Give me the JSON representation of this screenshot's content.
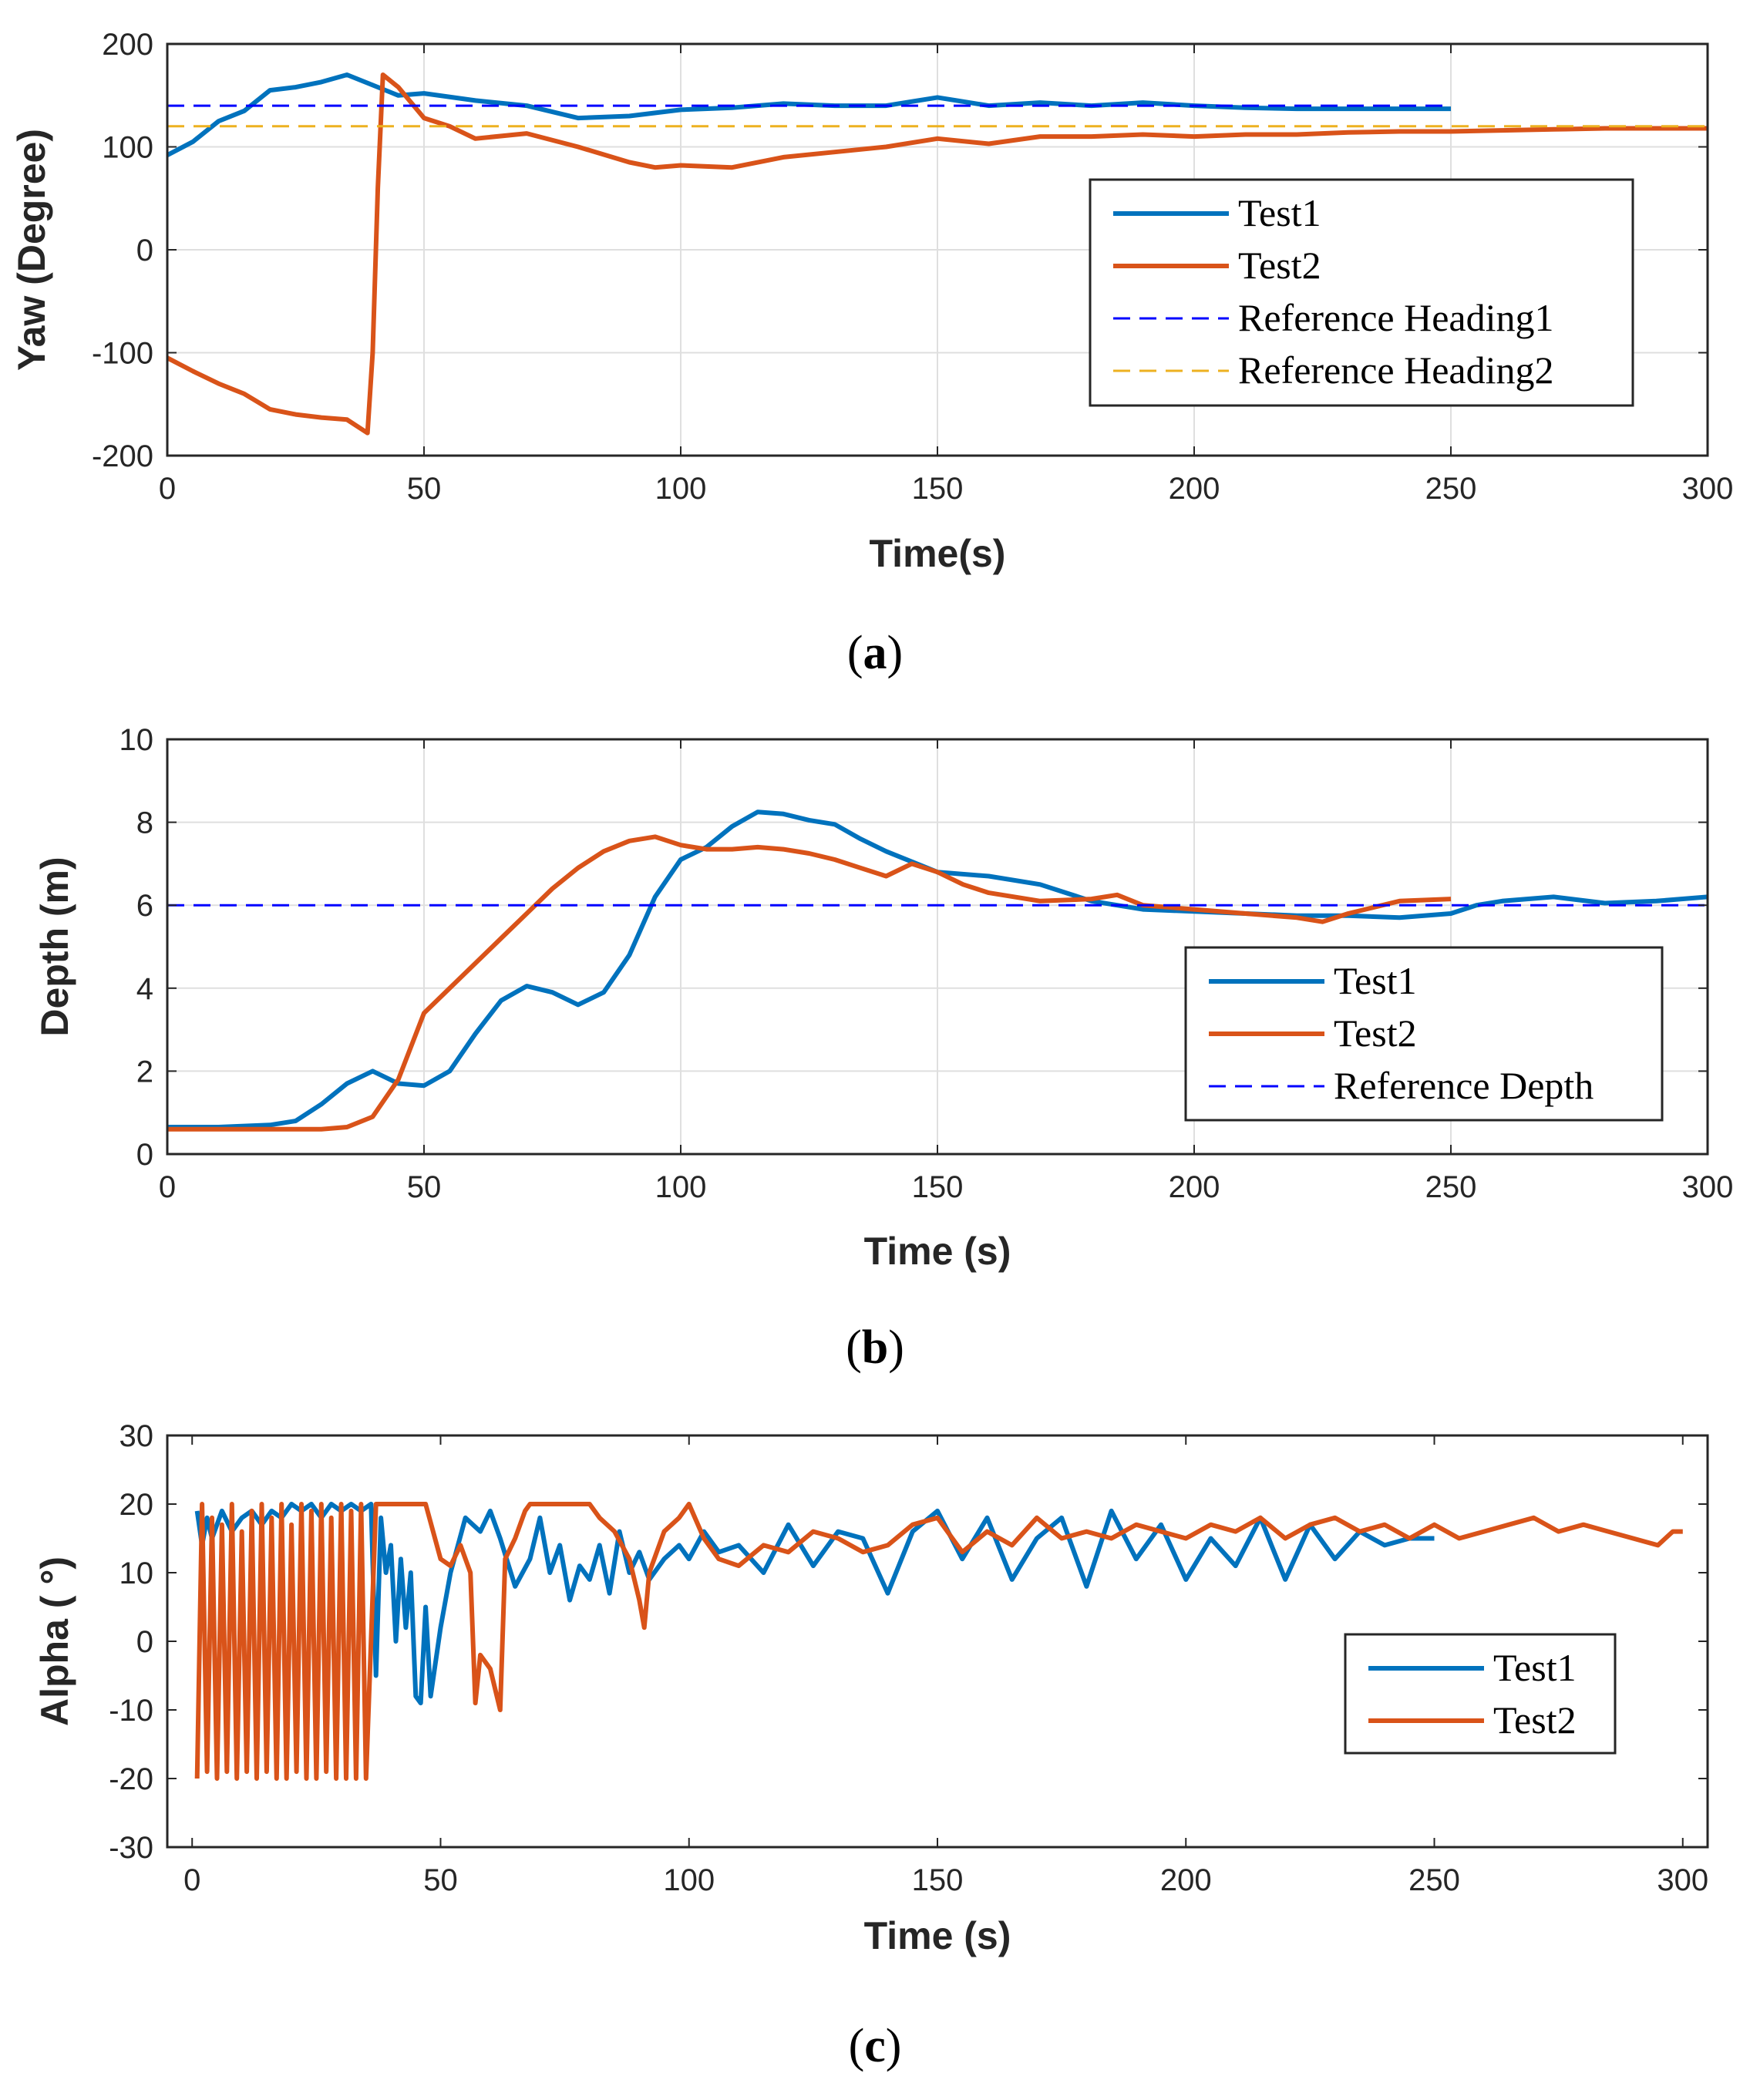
{
  "colors": {
    "test1": "#0072BD",
    "test2": "#D95319",
    "reference_blue": "#0000FF",
    "reference_orange": "#EDB120",
    "grid": "#DFDFDF",
    "axis": "#262626"
  },
  "chart_data": [
    {
      "type": "line",
      "caption_letter": "a",
      "xlabel": "Time(s)",
      "ylabel": "Yaw (Degree)",
      "xlim": [
        0,
        300
      ],
      "ylim": [
        -200,
        200
      ],
      "xticks": [
        0,
        50,
        100,
        150,
        200,
        250,
        300
      ],
      "yticks": [
        200,
        100,
        0,
        -100,
        -200
      ],
      "grid": true,
      "legend_position": "right",
      "series": [
        {
          "name": "Test1",
          "color_key": "test1",
          "style": "solid",
          "x": [
            0,
            5,
            10,
            15,
            20,
            25,
            30,
            35,
            40,
            45,
            50,
            60,
            70,
            80,
            90,
            100,
            110,
            120,
            130,
            140,
            150,
            160,
            170,
            180,
            190,
            200,
            210,
            220,
            230,
            240,
            250
          ],
          "y": [
            92,
            105,
            125,
            135,
            155,
            158,
            163,
            170,
            160,
            150,
            152,
            145,
            140,
            128,
            130,
            136,
            138,
            142,
            140,
            140,
            148,
            140,
            143,
            140,
            143,
            140,
            138,
            137,
            137,
            137,
            137
          ]
        },
        {
          "name": "Test2",
          "color_key": "test2",
          "style": "solid",
          "x": [
            0,
            5,
            10,
            15,
            20,
            25,
            30,
            35,
            39,
            40,
            41,
            42,
            45,
            50,
            55,
            60,
            70,
            80,
            90,
            95,
            100,
            110,
            120,
            130,
            140,
            150,
            160,
            170,
            180,
            190,
            200,
            210,
            220,
            230,
            240,
            250,
            260,
            270,
            280,
            290,
            300
          ],
          "y": [
            -105,
            -118,
            -130,
            -140,
            -155,
            -160,
            -163,
            -165,
            -178,
            -100,
            60,
            170,
            158,
            128,
            120,
            108,
            113,
            100,
            85,
            80,
            82,
            80,
            90,
            95,
            100,
            108,
            103,
            110,
            110,
            112,
            110,
            112,
            112,
            114,
            115,
            115,
            116,
            117,
            118,
            118,
            118
          ]
        },
        {
          "name": "Reference Heading1",
          "color_key": "reference_blue",
          "style": "dashed",
          "x": [
            0,
            250
          ],
          "y": [
            140,
            140
          ]
        },
        {
          "name": "Reference Heading2",
          "color_key": "reference_orange",
          "style": "dashed",
          "x": [
            0,
            300
          ],
          "y": [
            120,
            120
          ]
        }
      ]
    },
    {
      "type": "line",
      "caption_letter": "b",
      "xlabel": "Time (s)",
      "ylabel": "Depth (m)",
      "xlim": [
        0,
        300
      ],
      "ylim": [
        0,
        10
      ],
      "xticks": [
        0,
        50,
        100,
        150,
        200,
        250,
        300
      ],
      "yticks": [
        10,
        8,
        6,
        4,
        2,
        0
      ],
      "grid": true,
      "legend_position": "right",
      "series": [
        {
          "name": "Test1",
          "color_key": "test1",
          "style": "solid",
          "x": [
            0,
            10,
            20,
            25,
            30,
            35,
            40,
            45,
            50,
            55,
            60,
            65,
            70,
            75,
            80,
            85,
            90,
            95,
            100,
            105,
            110,
            115,
            120,
            125,
            130,
            135,
            140,
            150,
            160,
            170,
            180,
            190,
            200,
            210,
            220,
            230,
            240,
            250,
            255,
            260,
            270,
            280,
            290,
            300
          ],
          "y": [
            0.65,
            0.65,
            0.7,
            0.8,
            1.2,
            1.7,
            2.0,
            1.7,
            1.65,
            2.0,
            2.9,
            3.7,
            4.05,
            3.9,
            3.6,
            3.9,
            4.8,
            6.2,
            7.1,
            7.4,
            7.9,
            8.25,
            8.2,
            8.05,
            7.95,
            7.6,
            7.3,
            6.8,
            6.7,
            6.5,
            6.1,
            5.9,
            5.85,
            5.8,
            5.75,
            5.75,
            5.7,
            5.8,
            6.0,
            6.1,
            6.2,
            6.05,
            6.1,
            6.2
          ]
        },
        {
          "name": "Test2",
          "color_key": "test2",
          "style": "solid",
          "x": [
            0,
            10,
            20,
            30,
            35,
            40,
            45,
            50,
            55,
            60,
            65,
            70,
            75,
            80,
            85,
            90,
            95,
            100,
            105,
            110,
            115,
            120,
            125,
            130,
            135,
            140,
            145,
            150,
            155,
            160,
            170,
            180,
            185,
            190,
            200,
            210,
            220,
            225,
            230,
            240,
            250
          ],
          "y": [
            0.6,
            0.6,
            0.6,
            0.6,
            0.65,
            0.9,
            1.8,
            3.4,
            4.0,
            4.6,
            5.2,
            5.8,
            6.4,
            6.9,
            7.3,
            7.55,
            7.65,
            7.45,
            7.35,
            7.35,
            7.4,
            7.35,
            7.25,
            7.1,
            6.9,
            6.7,
            7.0,
            6.8,
            6.5,
            6.3,
            6.1,
            6.15,
            6.25,
            6.0,
            5.9,
            5.8,
            5.7,
            5.6,
            5.8,
            6.1,
            6.15
          ]
        },
        {
          "name": "Reference Depth",
          "color_key": "reference_blue",
          "style": "dashed",
          "x": [
            0,
            300
          ],
          "y": [
            6,
            6
          ]
        }
      ]
    },
    {
      "type": "line",
      "caption_letter": "c",
      "xlabel": "Time (s)",
      "ylabel": "Alpha ( °)",
      "xlim": [
        -5,
        305
      ],
      "ylim": [
        -30,
        30
      ],
      "xticks": [
        0,
        50,
        100,
        150,
        200,
        250,
        300
      ],
      "yticks": [
        30,
        20,
        10,
        0,
        -10,
        -20,
        -30
      ],
      "grid": false,
      "legend_position": "right",
      "series": [
        {
          "name": "Test1",
          "color_key": "test1",
          "style": "solid",
          "x": [
            1,
            2,
            3,
            4,
            6,
            8,
            10,
            12,
            14,
            16,
            18,
            20,
            22,
            24,
            26,
            28,
            30,
            32,
            34,
            36,
            37,
            38,
            39,
            40,
            41,
            42,
            43,
            44,
            45,
            46,
            47,
            48,
            50,
            52,
            55,
            58,
            60,
            62,
            65,
            68,
            70,
            72,
            74,
            76,
            78,
            80,
            82,
            84,
            86,
            88,
            90,
            92,
            95,
            98,
            100,
            103,
            106,
            110,
            115,
            120,
            125,
            130,
            135,
            140,
            145,
            150,
            155,
            160,
            165,
            170,
            175,
            180,
            185,
            190,
            195,
            200,
            205,
            210,
            215,
            220,
            225,
            230,
            235,
            240,
            245,
            250
          ],
          "y": [
            19,
            14,
            18,
            15,
            19,
            16,
            18,
            19,
            17,
            19,
            18,
            20,
            19,
            20,
            18,
            20,
            19,
            20,
            19,
            20,
            -5,
            18,
            10,
            14,
            0,
            12,
            2,
            10,
            -8,
            -9,
            5,
            -8,
            2,
            10,
            18,
            16,
            19,
            15,
            8,
            12,
            18,
            10,
            14,
            6,
            11,
            9,
            14,
            7,
            16,
            10,
            13,
            9,
            12,
            14,
            12,
            16,
            13,
            14,
            10,
            17,
            11,
            16,
            15,
            7,
            16,
            19,
            12,
            18,
            9,
            15,
            18,
            8,
            19,
            12,
            17,
            9,
            15,
            11,
            18,
            9,
            17,
            12,
            16,
            14,
            15,
            15
          ]
        },
        {
          "name": "Test2",
          "color_key": "test2",
          "style": "solid",
          "x": [
            1,
            2,
            3,
            4,
            5,
            6,
            7,
            8,
            9,
            10,
            11,
            12,
            13,
            14,
            15,
            16,
            17,
            18,
            19,
            20,
            21,
            22,
            23,
            24,
            25,
            26,
            27,
            28,
            29,
            30,
            31,
            32,
            33,
            34,
            35,
            37,
            40,
            43,
            45,
            47,
            50,
            52,
            54,
            56,
            57,
            58,
            60,
            62,
            63,
            65,
            67,
            68,
            70,
            75,
            80,
            82,
            85,
            88,
            90,
            91,
            92,
            95,
            98,
            100,
            103,
            106,
            110,
            115,
            120,
            125,
            130,
            135,
            140,
            145,
            150,
            155,
            160,
            165,
            170,
            175,
            180,
            185,
            190,
            195,
            200,
            205,
            210,
            215,
            220,
            225,
            230,
            235,
            240,
            245,
            250,
            255,
            260,
            265,
            270,
            275,
            280,
            285,
            290,
            295,
            298,
            300
          ],
          "y": [
            -20,
            20,
            -19,
            18,
            -20,
            17,
            -19,
            20,
            -20,
            16,
            -19,
            19,
            -20,
            20,
            -19,
            18,
            -20,
            20,
            -20,
            17,
            -19,
            20,
            -20,
            19,
            -20,
            20,
            -19,
            18,
            -20,
            20,
            -20,
            19,
            -20,
            20,
            -20,
            20,
            20,
            20,
            20,
            20,
            12,
            11,
            14,
            10,
            -9,
            -2,
            -4,
            -10,
            12,
            15,
            19,
            20,
            20,
            20,
            20,
            18,
            16,
            12,
            6,
            2,
            10,
            16,
            18,
            20,
            15,
            12,
            11,
            14,
            13,
            16,
            15,
            13,
            14,
            17,
            18,
            13,
            16,
            14,
            18,
            15,
            16,
            15,
            17,
            16,
            15,
            17,
            16,
            18,
            15,
            17,
            18,
            16,
            17,
            15,
            17,
            15,
            16,
            17,
            18,
            16,
            17,
            16,
            15,
            14,
            16,
            16
          ]
        }
      ]
    }
  ]
}
